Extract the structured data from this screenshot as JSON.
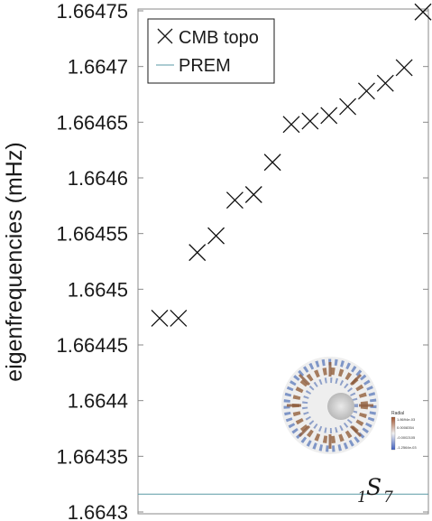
{
  "chart_data": {
    "type": "scatter",
    "ylabel": "eigenfrequencies (mHz)",
    "xlabel": "",
    "ylim": [
      1.6643,
      1.66475
    ],
    "yticks": [
      "1.66475",
      "1.6647",
      "1.66465",
      "1.6646",
      "1.66455",
      "1.6645",
      "1.66445",
      "1.6644",
      "1.66435",
      "1.6643"
    ],
    "yticks_values": [
      1.66475,
      1.6647,
      1.66465,
      1.6646,
      1.66455,
      1.6645,
      1.66445,
      1.6644,
      1.66435,
      1.6643
    ],
    "xlim": [
      0.5,
      15.5
    ],
    "grid": false,
    "legend_position": "top-left",
    "series": [
      {
        "name": "CMB topo",
        "marker": "x",
        "color": "#000000",
        "x": [
          1,
          2,
          3,
          4,
          5,
          6,
          7,
          8,
          9,
          10,
          11,
          12,
          13,
          14,
          15
        ],
        "y": [
          1.664474,
          1.664474,
          1.664533,
          1.664548,
          1.66458,
          1.664585,
          1.664614,
          1.664648,
          1.664651,
          1.664656,
          1.664664,
          1.664678,
          1.664685,
          1.664699,
          1.664749
        ]
      },
      {
        "name": "PREM",
        "marker": "line",
        "color": "#5a9aa5",
        "y": 1.664316
      }
    ],
    "annotation": {
      "prefix": "1",
      "letter": "S",
      "subscript": "7"
    },
    "inset": {
      "title": "Radial",
      "scale": [
        "1.8694e-03",
        "0.0008354",
        "-0.0002105",
        "-1.2564e-03"
      ]
    }
  }
}
